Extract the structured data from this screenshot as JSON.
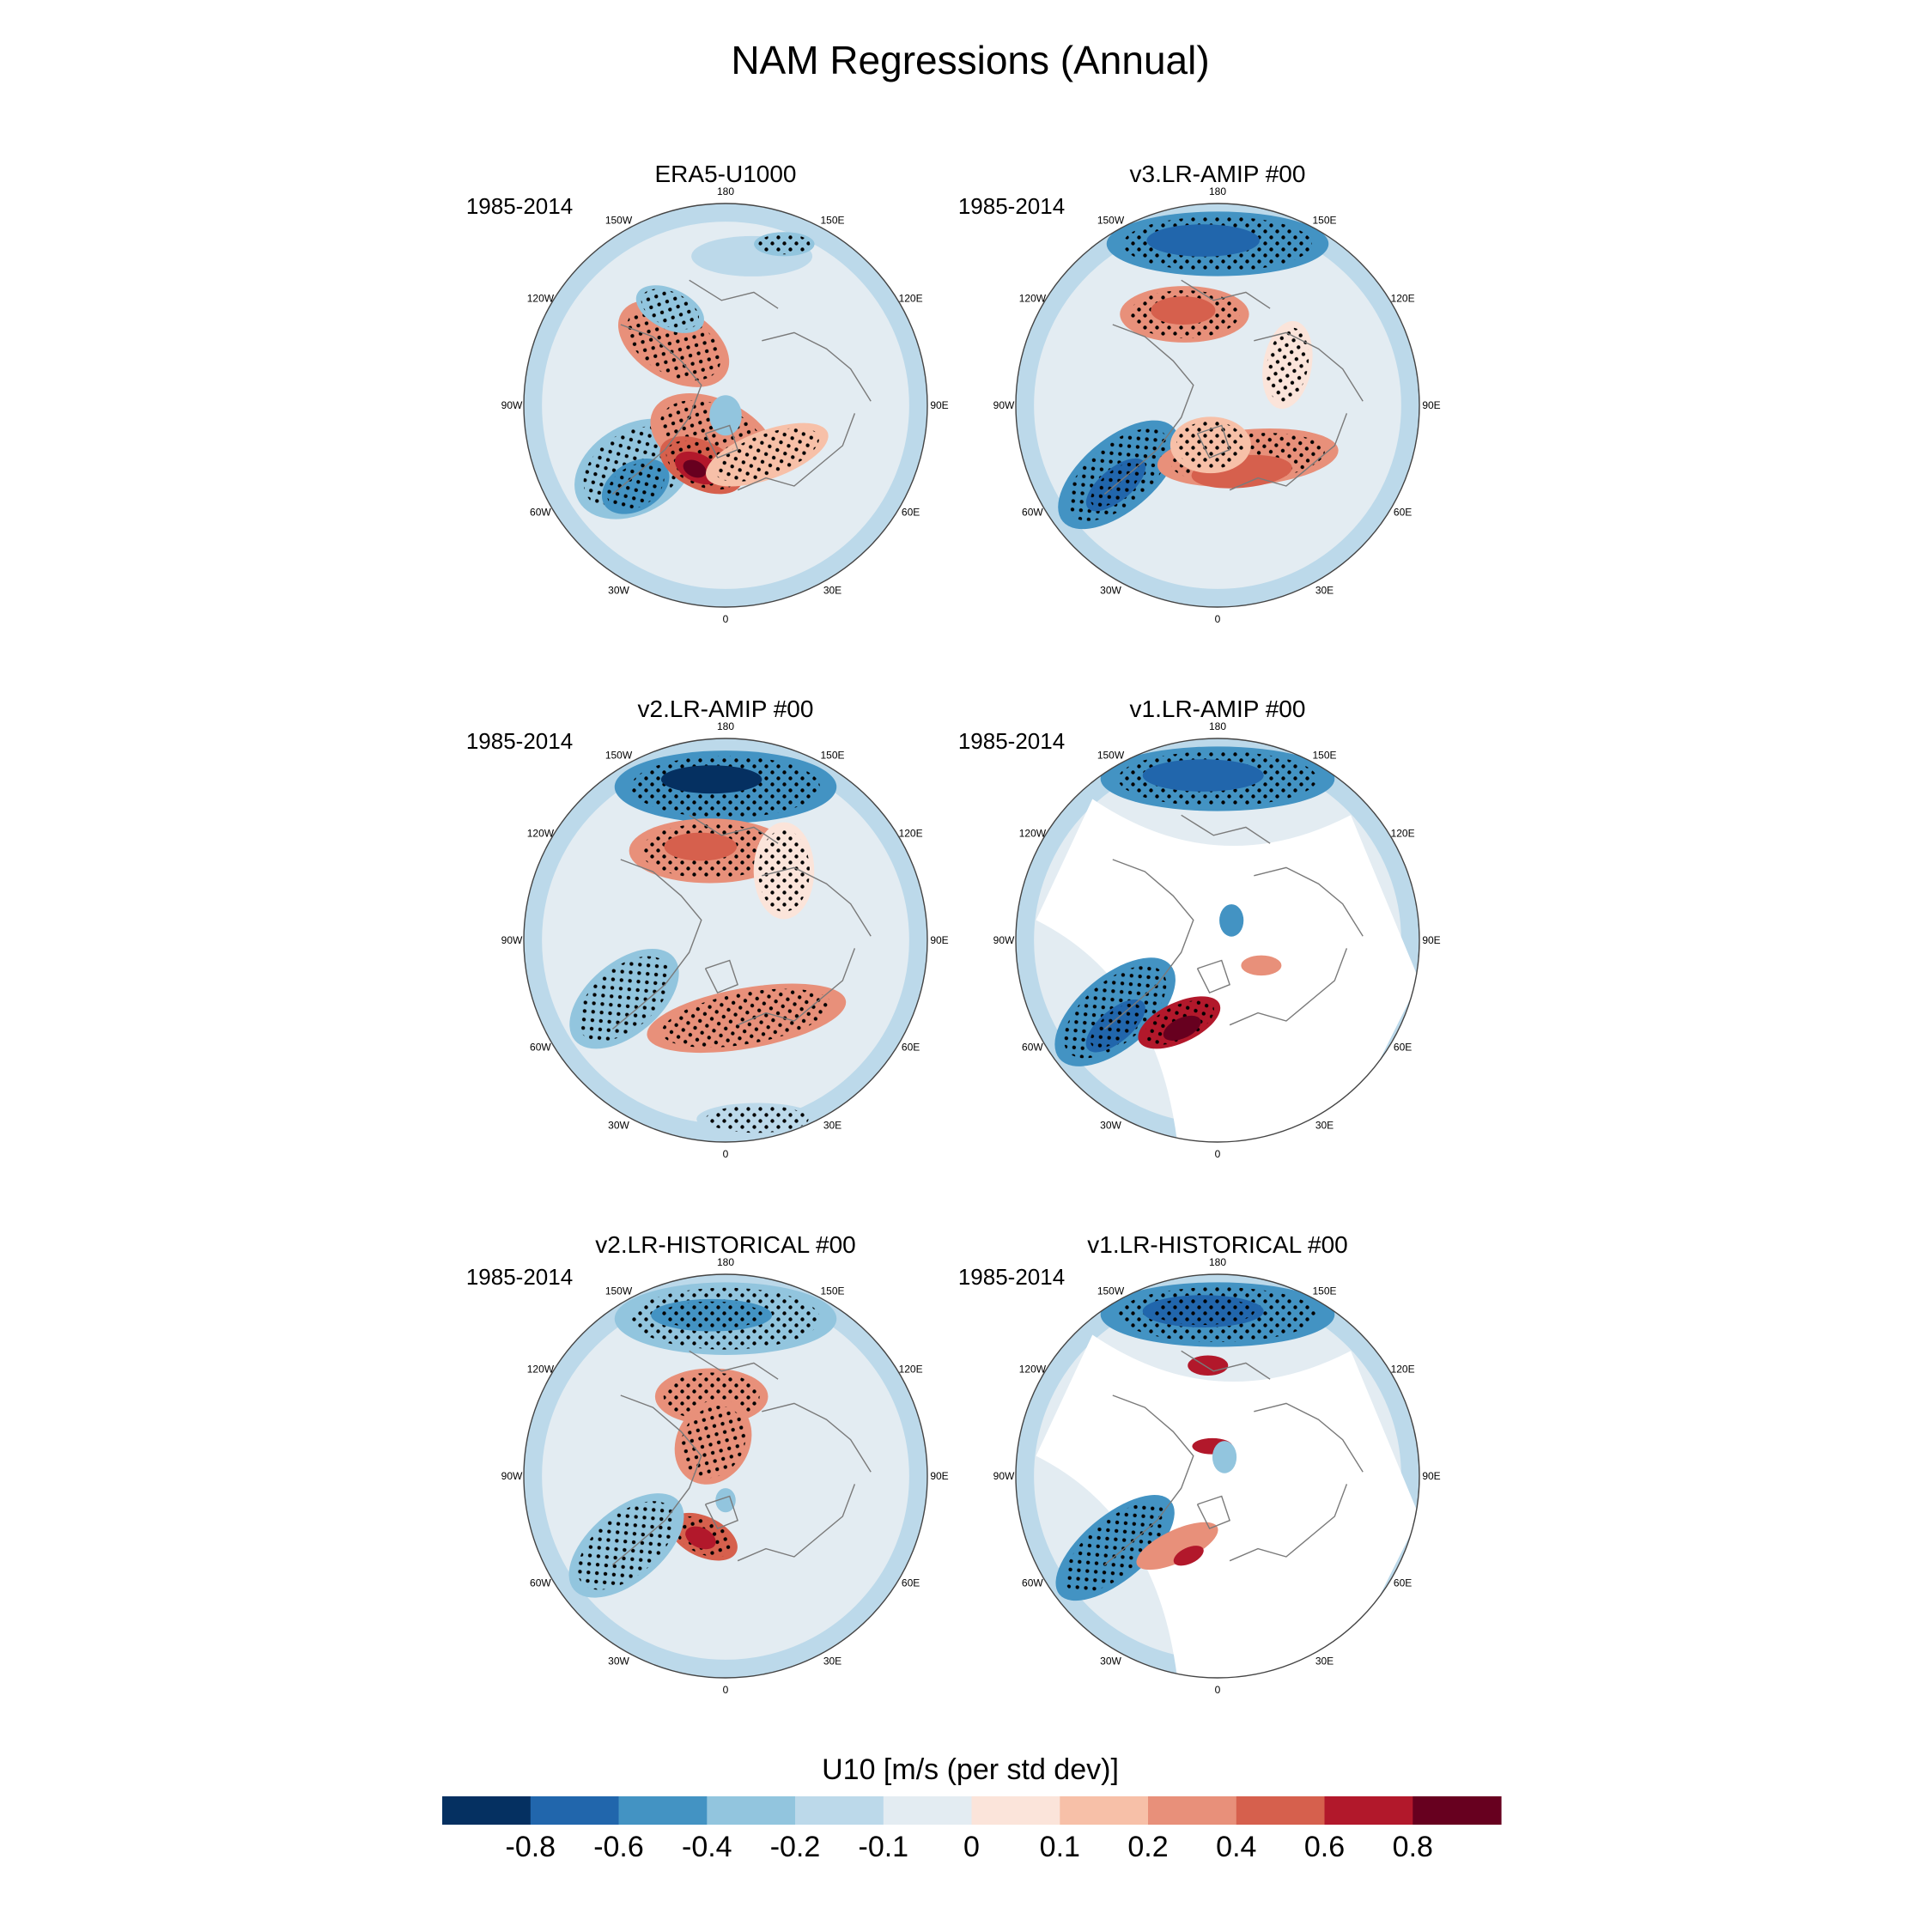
{
  "chart_data": {
    "type": "heatmap",
    "title": "NAM Regressions (Annual)",
    "projection": "north polar stereographic",
    "period": "1985-2014",
    "longitude_labels": [
      "180",
      "150E",
      "120E",
      "90E",
      "60E",
      "30E",
      "0",
      "30W",
      "60W",
      "90W",
      "120W",
      "150W"
    ],
    "panels": [
      {
        "title": "ERA5-U1000",
        "period": "1985-2014",
        "missing_data_over_land": false
      },
      {
        "title": "v3.LR-AMIP  #00",
        "period": "1985-2014",
        "missing_data_over_land": false
      },
      {
        "title": "v2.LR-AMIP  #00",
        "period": "1985-2014",
        "missing_data_over_land": false
      },
      {
        "title": "v1.LR-AMIP  #00",
        "period": "1985-2014",
        "missing_data_over_land": true
      },
      {
        "title": "v2.LR-HISTORICAL  #00",
        "period": "1985-2014",
        "missing_data_over_land": false
      },
      {
        "title": "v1.LR-HISTORICAL  #00",
        "period": "1985-2014",
        "missing_data_over_land": true
      }
    ],
    "colorbar": {
      "title": "U10 [m/s (per std dev)]",
      "tick_labels": [
        "-0.8",
        "-0.6",
        "-0.4",
        "-0.2",
        "-0.1",
        "0",
        "0.1",
        "0.2",
        "0.4",
        "0.6",
        "0.8"
      ],
      "levels": [
        -0.8,
        -0.6,
        -0.4,
        -0.2,
        -0.1,
        0,
        0.1,
        0.2,
        0.4,
        0.6,
        0.8
      ],
      "colors": [
        "#053061",
        "#2166ac",
        "#4393c3",
        "#92c5de",
        "#bcd9ea",
        "#e3ecf2",
        "#fbe4da",
        "#f7c0a8",
        "#e8907a",
        "#d6604d",
        "#b2182b",
        "#67001f"
      ]
    }
  }
}
